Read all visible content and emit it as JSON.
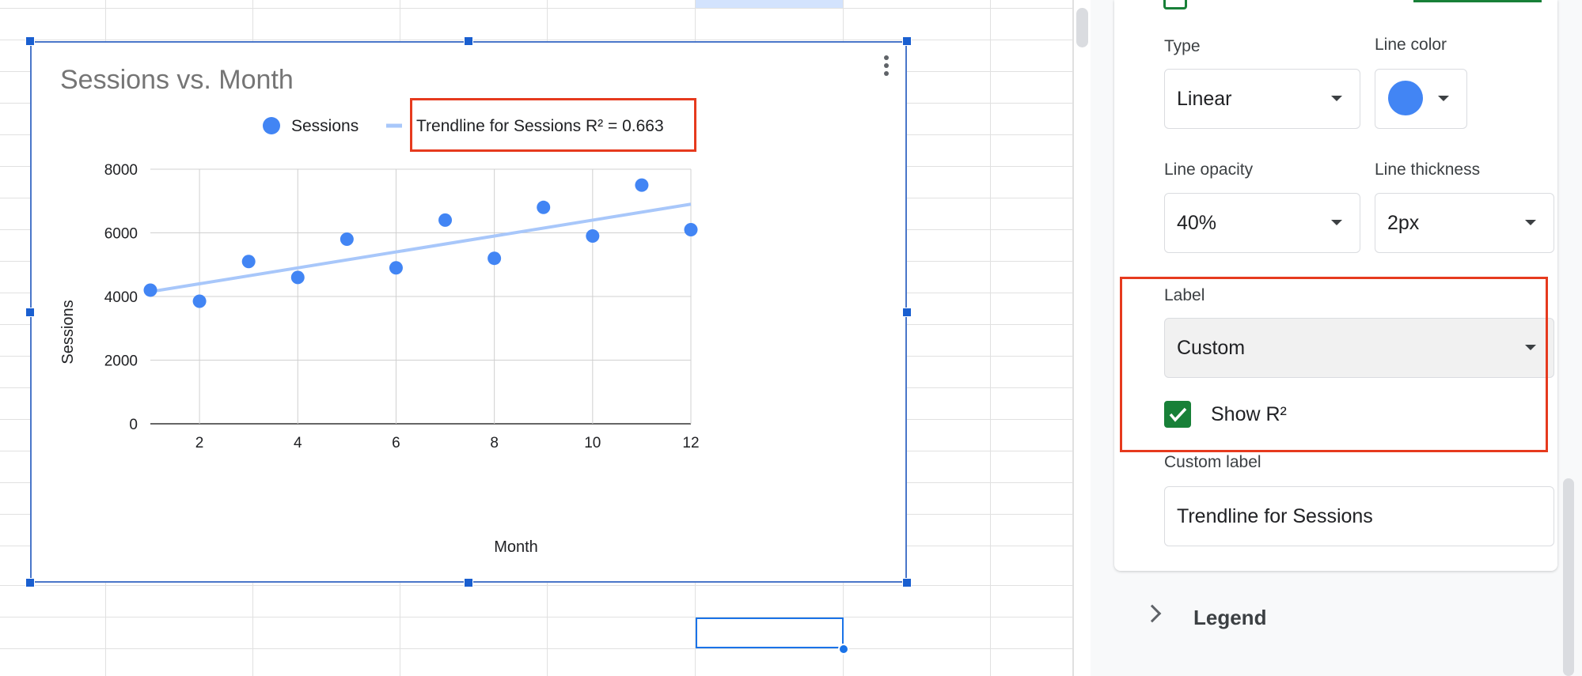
{
  "chart": {
    "title": "Sessions vs. Month",
    "legend": {
      "series_label": "Sessions",
      "trendline_label": "Trendline for Sessions R² = 0.663"
    },
    "xlabel": "Month",
    "ylabel": "Sessions"
  },
  "chart_data": {
    "type": "scatter",
    "title": "Sessions vs. Month",
    "xlabel": "Month",
    "ylabel": "Sessions",
    "xlim": [
      1,
      12
    ],
    "ylim": [
      0,
      8000
    ],
    "x_ticks": [
      "2",
      "4",
      "6",
      "8",
      "10",
      "12"
    ],
    "y_ticks": [
      "0",
      "2000",
      "4000",
      "6000",
      "8000"
    ],
    "grid": true,
    "legend_position": "top",
    "series": [
      {
        "name": "Sessions",
        "color": "#4285f4",
        "points": [
          {
            "x": 1,
            "y": 4200
          },
          {
            "x": 2,
            "y": 3850
          },
          {
            "x": 3,
            "y": 5100
          },
          {
            "x": 4,
            "y": 4600
          },
          {
            "x": 5,
            "y": 5800
          },
          {
            "x": 6,
            "y": 4900
          },
          {
            "x": 7,
            "y": 6400
          },
          {
            "x": 8,
            "y": 5200
          },
          {
            "x": 9,
            "y": 6800
          },
          {
            "x": 10,
            "y": 5900
          },
          {
            "x": 11,
            "y": 7500
          },
          {
            "x": 12,
            "y": 6100
          }
        ]
      }
    ],
    "trendline": {
      "name": "Trendline for Sessions R² = 0.663",
      "type": "linear",
      "color": "#a8c7fa",
      "r2": 0.663,
      "start": {
        "x": 1,
        "y": 4150
      },
      "end": {
        "x": 12,
        "y": 6900
      }
    }
  },
  "panel": {
    "type_label": "Type",
    "type_value": "Linear",
    "line_color_label": "Line color",
    "line_color_value": "#4285f4",
    "line_opacity_label": "Line opacity",
    "line_opacity_value": "40%",
    "line_thickness_label": "Line thickness",
    "line_thickness_value": "2px",
    "label_label": "Label",
    "label_value": "Custom",
    "show_r2_label": "Show R²",
    "show_r2_checked": true,
    "custom_label_label": "Custom label",
    "custom_label_value": "Trendline for Sessions",
    "legend_section": "Legend"
  },
  "colors": {
    "accent_green": "#188038",
    "highlight_red": "#e63a1e",
    "selection_blue": "#1a73e8"
  }
}
